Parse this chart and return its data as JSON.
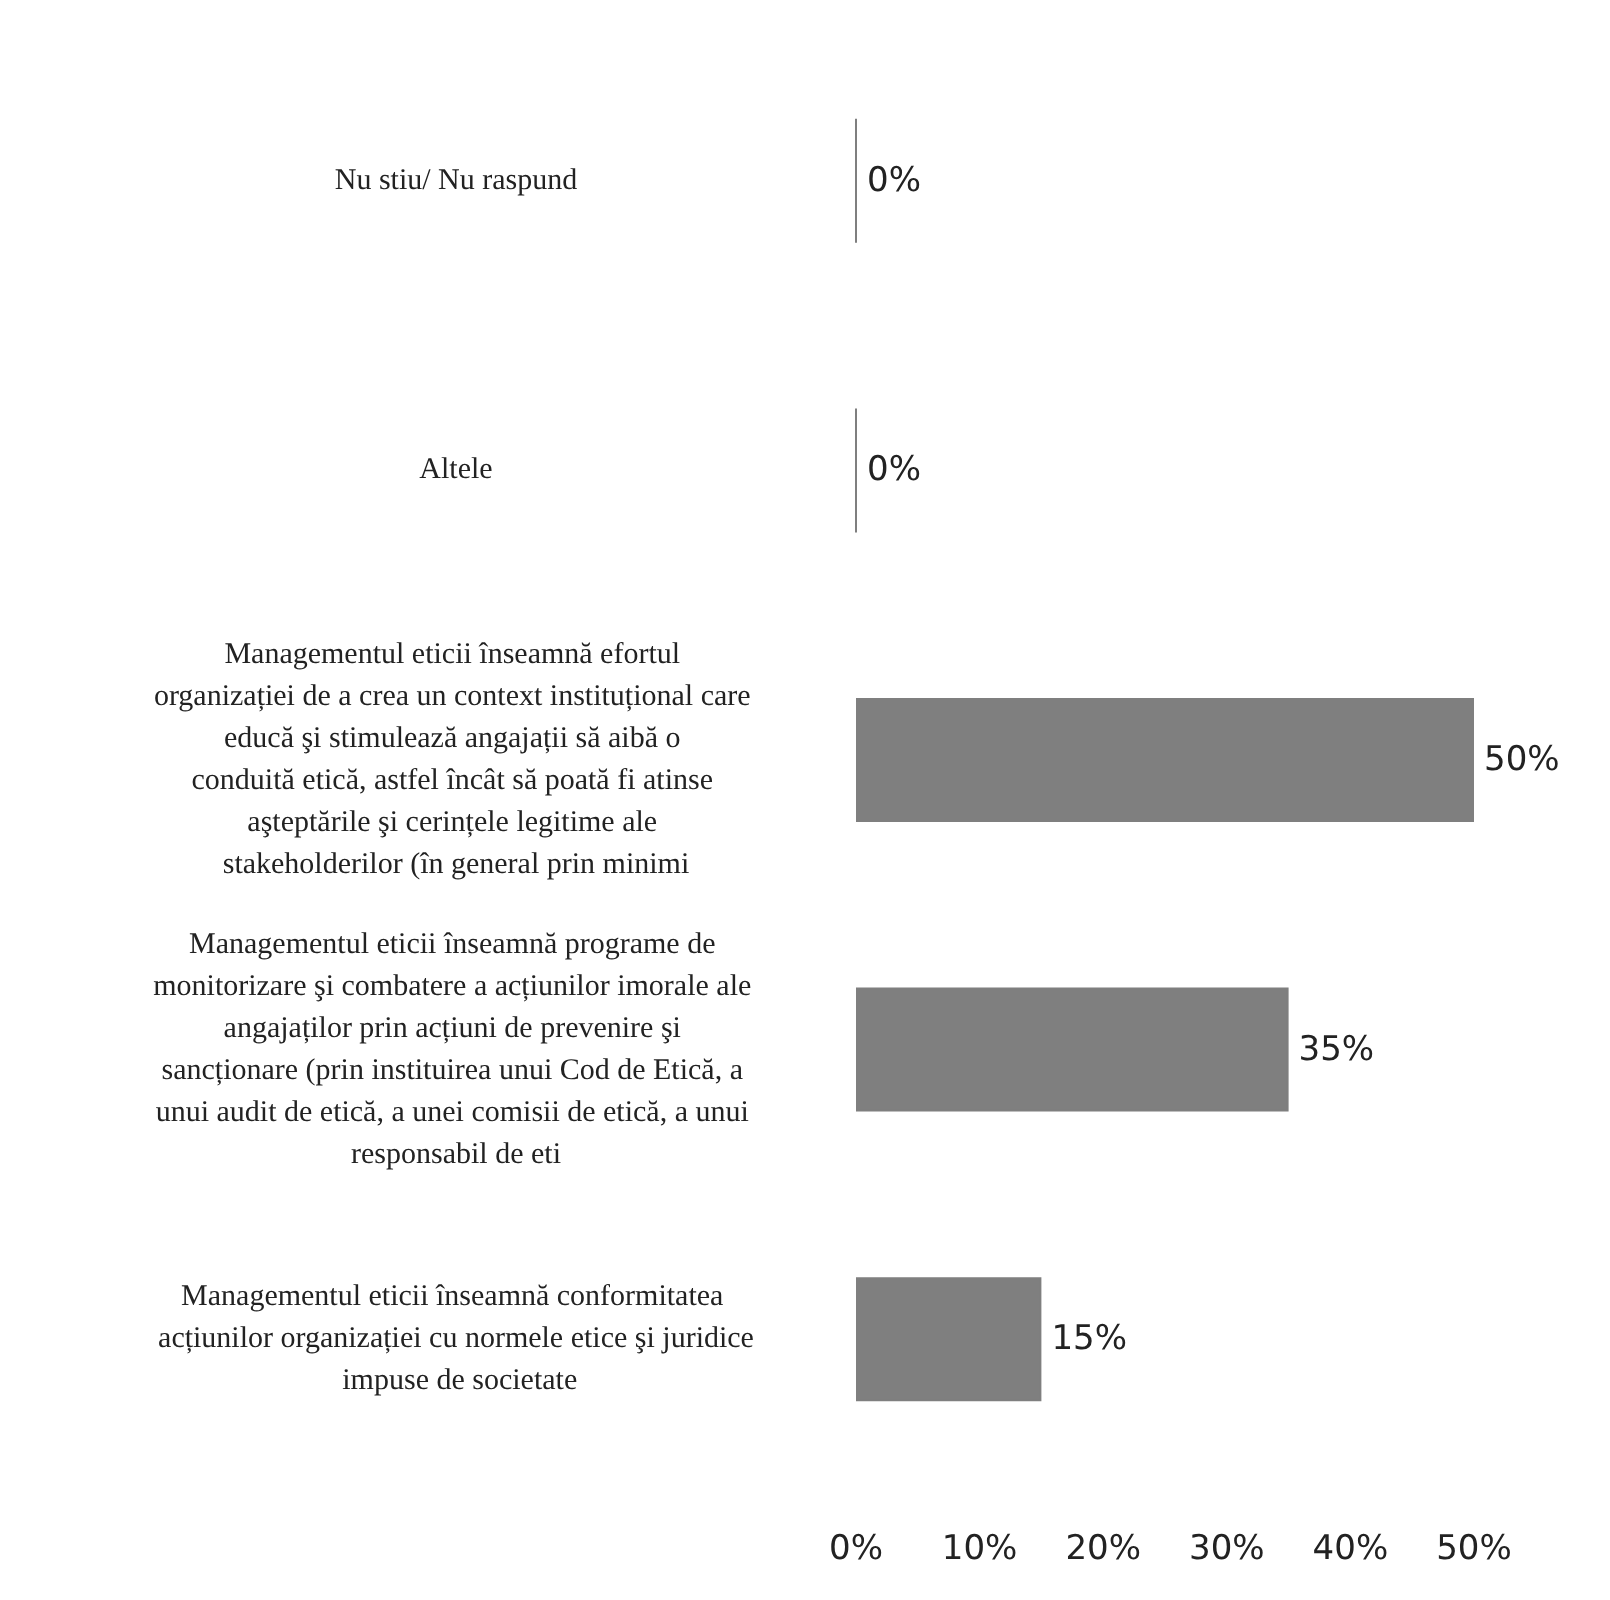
{
  "chart_data": {
    "type": "bar",
    "orientation": "horizontal",
    "categories": [
      "Nu stiu/ Nu raspund",
      "Altele",
      "Managementul eticii înseamnă efortul organizației de a crea un context instituțional care educă şi stimulează angajații să aibă o conduită etică, astfel încât să poată fi atinse aşteptările şi cerințele legitime ale stakeholderilor (în general prin minimi",
      "Managementul eticii înseamnă programe de monitorizare şi combatere a acțiunilor imorale ale angajaților prin acțiuni de prevenire şi sancționare (prin instituirea unui Cod de Etică, a unui audit de etică, a unei comisii de etică, a unui responsabil de eti",
      "Managementul eticii înseamnă conformitatea acțiunilor organizației cu normele etice şi juridice impuse de societate"
    ],
    "values": [
      0,
      0,
      50,
      35,
      15
    ],
    "value_labels": [
      "0%",
      "0%",
      "50%",
      "35%",
      "15%"
    ],
    "color": "#7f7f7f",
    "xlim": [
      0,
      50
    ],
    "xticks": [
      {
        "value": 0,
        "label": "0%"
      },
      {
        "value": 10,
        "label": "10%"
      },
      {
        "value": 20,
        "label": "20%"
      },
      {
        "value": 30,
        "label": "30%"
      },
      {
        "value": 40,
        "label": "40%"
      },
      {
        "value": 50,
        "label": "50%"
      }
    ],
    "grid": false
  }
}
